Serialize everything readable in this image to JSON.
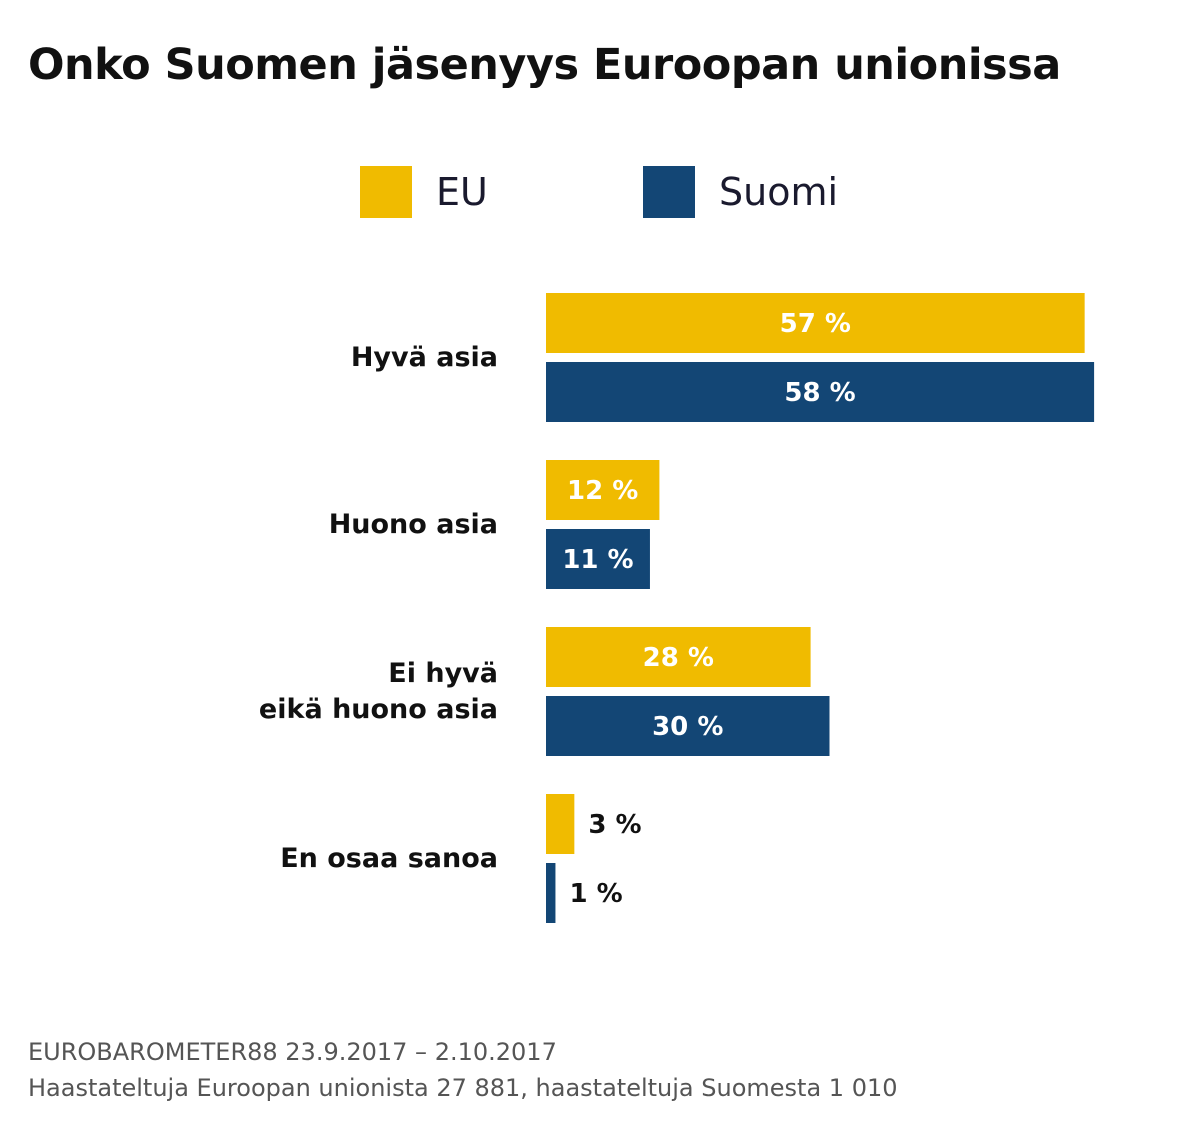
{
  "chart_data": {
    "type": "bar",
    "orientation": "horizontal",
    "title": "Onko Suomen jäsenyys Euroopan unionissa",
    "categories": [
      "Hyvä asia",
      "Huono asia",
      "Ei hyvä\neikä huono asia",
      "En osaa sanoa"
    ],
    "series": [
      {
        "name": "EU",
        "color": "#f0bb00",
        "values": [
          57,
          12,
          28,
          3
        ],
        "labels": [
          "57 %",
          "12 %",
          "28 %",
          "3 %"
        ]
      },
      {
        "name": "Suomi",
        "color": "#134675",
        "values": [
          58,
          11,
          30,
          1
        ],
        "labels": [
          "58 %",
          "11 %",
          "30 %",
          "1 %"
        ]
      }
    ],
    "xlim": [
      0,
      58
    ],
    "legend_position": "top",
    "grid": false
  },
  "footer": {
    "source": "EUROBAROMETER88 23.9.2017 – 2.10.2017",
    "note": "Haastateltuja Euroopan unionista 27 881, haastateltuja Suomesta 1 010"
  }
}
